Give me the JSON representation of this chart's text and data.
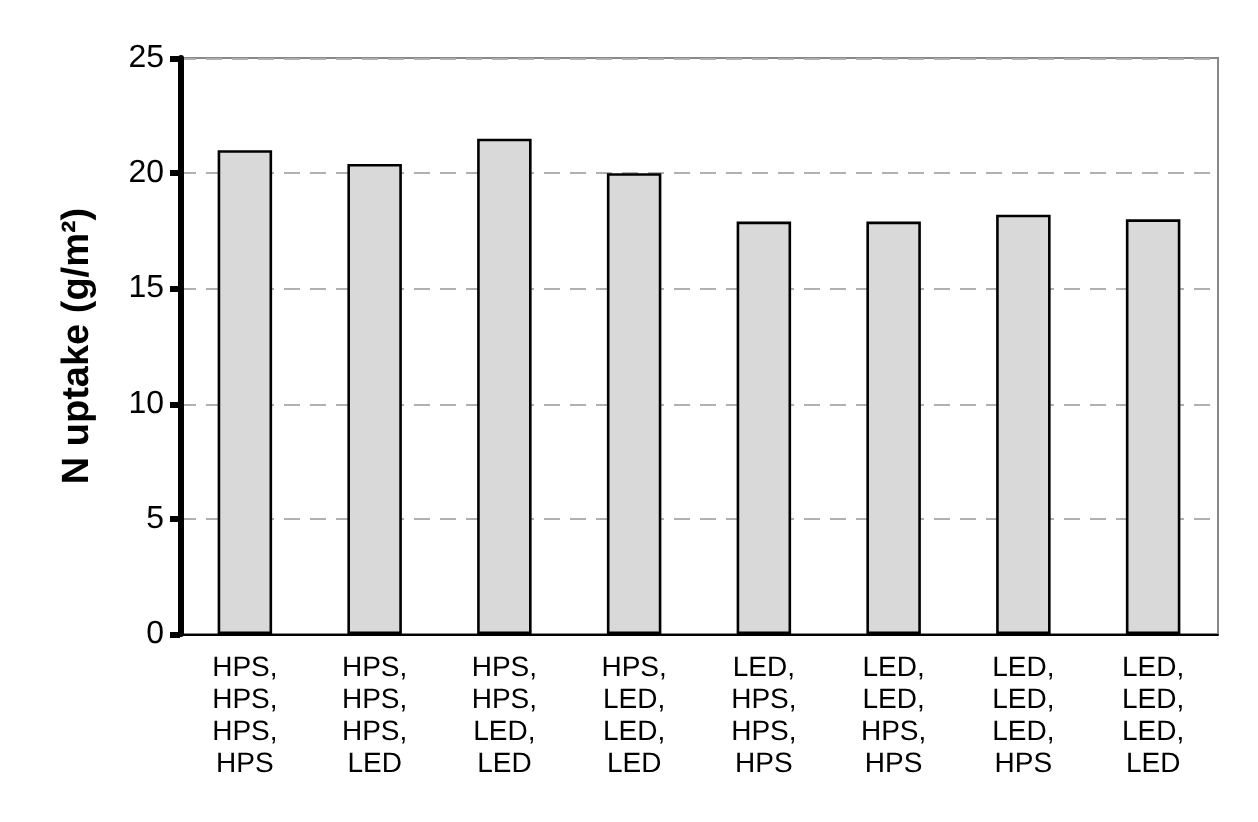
{
  "chart_data": {
    "type": "bar",
    "ylabel": "N uptake (g/m²)",
    "categories": [
      "HPS,\nHPS,\nHPS,\nHPS",
      "HPS,\nHPS,\nHPS,\nLED",
      "HPS,\nHPS,\nLED,\nLED",
      "HPS,\nLED,\nLED,\nLED",
      "LED,\nHPS,\nHPS,\nHPS",
      "LED,\nLED,\nHPS,\nHPS",
      "LED,\nLED,\nLED,\nHPS",
      "LED,\nLED,\nLED,\nLED"
    ],
    "values": [
      21.0,
      20.4,
      21.5,
      20.0,
      17.9,
      17.9,
      18.2,
      18.0
    ],
    "color": "#d9d9d9",
    "ylim": [
      0,
      25
    ],
    "yticks": [
      0,
      5,
      10,
      15,
      20,
      25
    ],
    "grid": "y"
  }
}
